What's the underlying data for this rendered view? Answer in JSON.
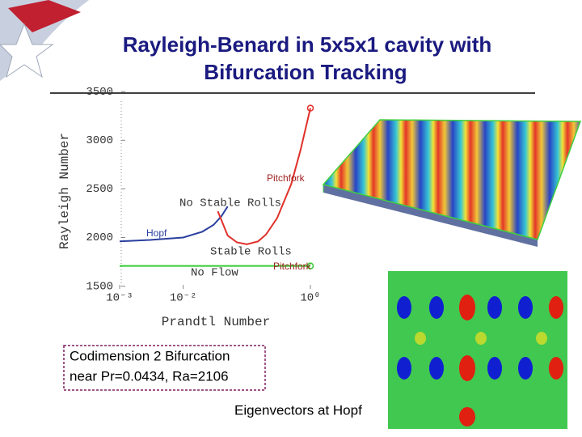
{
  "slide": {
    "title_lines": [
      "Rayleigh-Benard in 5x5x1 cavity with",
      "Bifurcation Tracking"
    ],
    "note_lines": [
      "Codimension 2 Bifurcation",
      "near Pr=0.0434, Ra=2106"
    ],
    "caption": "Eigenvectors at Hopf"
  },
  "chart_data": {
    "type": "line",
    "xscale": "log",
    "xlabel": "Prandtl Number",
    "ylabel": "Rayleigh Number",
    "xlim": [
      0.001,
      1
    ],
    "ylim": [
      1380,
      3560
    ],
    "xticks": [
      {
        "value": 0.001,
        "label": "10⁻³"
      },
      {
        "value": 0.01,
        "label": "10⁻²"
      },
      {
        "value": 1,
        "label": "10⁰"
      }
    ],
    "yticks": [
      1500,
      2000,
      2500,
      3000,
      3500
    ],
    "annotations": [
      "Pitchfork",
      "No Stable Rolls",
      "Hopf",
      "Stable Rolls",
      "No Flow",
      "Pitchfork"
    ],
    "series": [
      {
        "color": "#2a3f9e",
        "x": [
          0.001,
          0.003,
          0.01,
          0.02,
          0.03,
          0.04,
          0.05
        ],
        "values": [
          1960,
          1975,
          2000,
          2060,
          2130,
          2220,
          2320
        ]
      },
      {
        "color": "#e0302a",
        "x": [
          0.035,
          0.05,
          0.07,
          0.1,
          0.15,
          0.2,
          0.3,
          0.5,
          0.7,
          1
        ],
        "values": [
          2270,
          2020,
          1950,
          1930,
          1960,
          2030,
          2200,
          2550,
          2900,
          3330
        ]
      },
      {
        "color": "#33cc33",
        "x": [
          0.001,
          1
        ],
        "values": [
          1708,
          1708
        ]
      }
    ]
  }
}
